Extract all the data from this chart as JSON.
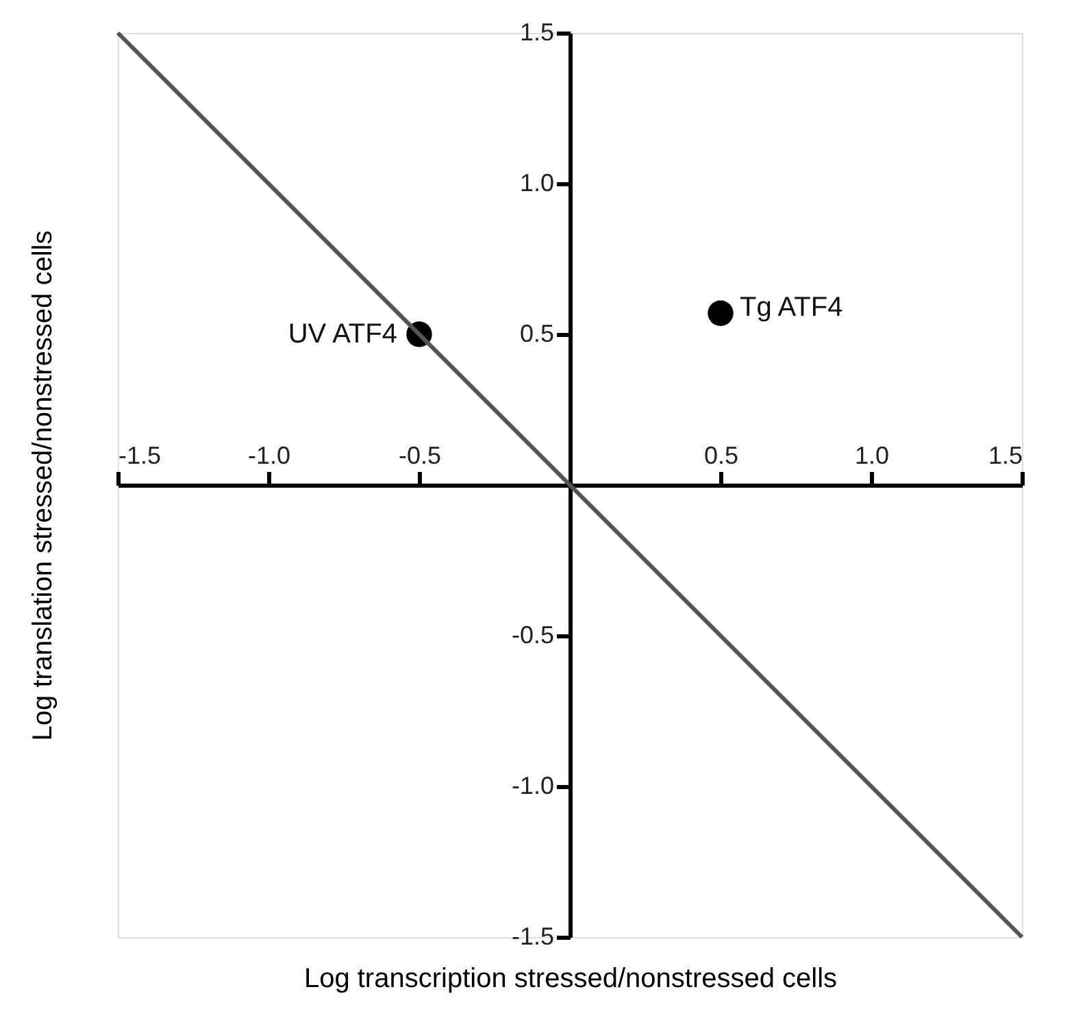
{
  "chart_data": {
    "type": "scatter",
    "xlabel": "Log transcription stressed/nonstressed cells",
    "ylabel": "Log translation stressed/nonstressed cells",
    "xlim": [
      -1.5,
      1.5
    ],
    "ylim": [
      -1.5,
      1.5
    ],
    "xticks": [
      -1.5,
      {
        "value": -1,
        "label": "-1.0"
      },
      -0.5,
      0.5,
      {
        "value": 1,
        "label": "1.0"
      },
      1.5
    ],
    "yticks": [
      -1.5,
      {
        "value": -1,
        "label": "-1.0"
      },
      -0.5,
      0.5,
      {
        "value": 1,
        "label": "1.0"
      },
      1.5
    ],
    "grid": false,
    "series": [
      {
        "color": "#000000",
        "marker": "circle",
        "x": [
          -0.5,
          0.5
        ],
        "values": [
          0.5,
          0.57
        ]
      },
      {
        "type": "line",
        "color": "#555555",
        "x": [
          -1.5,
          1.5
        ],
        "values": [
          1.5,
          -1.5
        ],
        "line_style": "solid",
        "marker": "none"
      }
    ],
    "annotations": [
      {
        "text": "UV ATF4",
        "x": -0.5,
        "y": 0.5
      },
      {
        "text": "Tg ATF4",
        "x": 0.5,
        "y": 0.57
      }
    ]
  }
}
